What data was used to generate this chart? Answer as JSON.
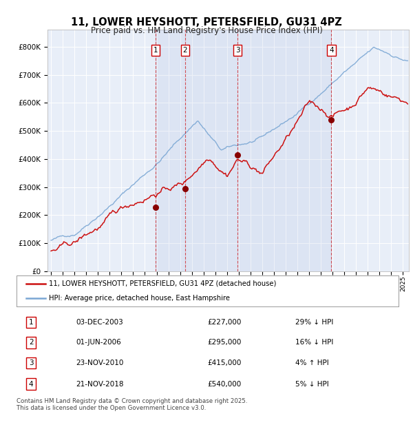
{
  "title": "11, LOWER HEYSHOTT, PETERSFIELD, GU31 4PZ",
  "subtitle": "Price paid vs. HM Land Registry's House Price Index (HPI)",
  "yticks": [
    0,
    100000,
    200000,
    300000,
    400000,
    500000,
    600000,
    700000,
    800000
  ],
  "ylim": [
    0,
    860000
  ],
  "xlim_start": 1994.7,
  "xlim_end": 2025.5,
  "background_color": "#e8eef8",
  "grid_color": "#ffffff",
  "hpi_color": "#7ba7d4",
  "price_color": "#cc1111",
  "transactions": [
    {
      "label": "1",
      "date": 2003.92,
      "price": 227000,
      "date_str": "03-DEC-2003",
      "note": "29% ↓ HPI"
    },
    {
      "label": "2",
      "date": 2006.42,
      "price": 295000,
      "date_str": "01-JUN-2006",
      "note": "16% ↓ HPI"
    },
    {
      "label": "3",
      "date": 2010.9,
      "price": 415000,
      "date_str": "23-NOV-2010",
      "note": "4% ↑ HPI"
    },
    {
      "label": "4",
      "date": 2018.9,
      "price": 540000,
      "date_str": "21-NOV-2018",
      "note": "5% ↓ HPI"
    }
  ],
  "legend_line1": "11, LOWER HEYSHOTT, PETERSFIELD, GU31 4PZ (detached house)",
  "legend_line2": "HPI: Average price, detached house, East Hampshire",
  "footer": "Contains HM Land Registry data © Crown copyright and database right 2025.\nThis data is licensed under the Open Government Licence v3.0.",
  "table_rows": [
    [
      "1",
      "03-DEC-2003",
      "£227,000",
      "29% ↓ HPI"
    ],
    [
      "2",
      "01-JUN-2006",
      "£295,000",
      "16% ↓ HPI"
    ],
    [
      "3",
      "23-NOV-2010",
      "£415,000",
      "4% ↑ HPI"
    ],
    [
      "4",
      "21-NOV-2018",
      "£540,000",
      "5% ↓ HPI"
    ]
  ]
}
